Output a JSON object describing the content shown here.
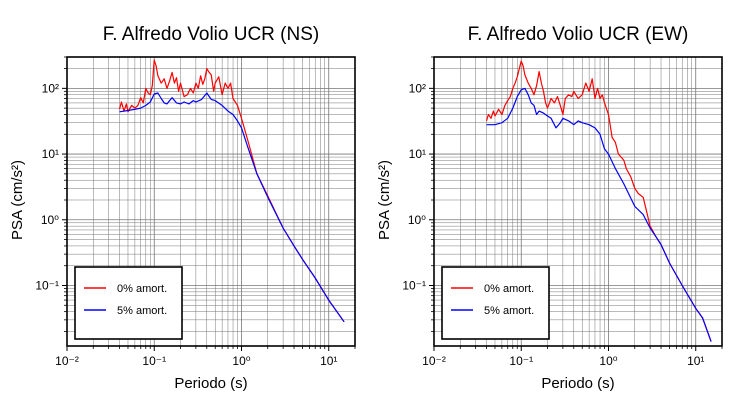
{
  "chart_data": [
    {
      "type": "line",
      "title": "F. Alfredo Volio UCR (NS)",
      "xlabel": "Periodo (s)",
      "ylabel": "PSA (cm/s²)",
      "xscale": "log",
      "yscale": "log",
      "xlim": [
        0.01,
        20
      ],
      "ylim": [
        0.012,
        300
      ],
      "grid": true,
      "legend_position": "lower-left",
      "x_tick_labels": [
        "10⁻²",
        "10⁻¹",
        "10⁰",
        "10¹"
      ],
      "y_tick_labels": [
        "10⁻¹",
        "10⁰",
        "10¹",
        "10²"
      ],
      "series": [
        {
          "name": "0% amort.",
          "color": "#ff0000",
          "x": [
            0.04,
            0.042,
            0.045,
            0.048,
            0.05,
            0.055,
            0.06,
            0.065,
            0.07,
            0.075,
            0.08,
            0.085,
            0.09,
            0.095,
            0.1,
            0.105,
            0.11,
            0.12,
            0.13,
            0.14,
            0.15,
            0.16,
            0.17,
            0.18,
            0.19,
            0.2,
            0.22,
            0.24,
            0.26,
            0.28,
            0.3,
            0.32,
            0.34,
            0.36,
            0.38,
            0.4,
            0.42,
            0.45,
            0.48,
            0.5,
            0.55,
            0.6,
            0.65,
            0.7,
            0.75,
            0.8,
            0.9,
            1.0,
            1.2,
            1.5,
            2.0,
            3.0,
            4.0,
            5.0,
            7.0,
            10.0,
            15.0
          ],
          "y": [
            48,
            62,
            45,
            58,
            44,
            55,
            50,
            55,
            72,
            60,
            100,
            85,
            80,
            110,
            270,
            220,
            155,
            120,
            140,
            100,
            130,
            175,
            120,
            145,
            90,
            120,
            75,
            80,
            100,
            85,
            120,
            100,
            155,
            115,
            140,
            200,
            180,
            160,
            90,
            120,
            150,
            80,
            120,
            100,
            120,
            70,
            55,
            35,
            15,
            5,
            2.3,
            0.75,
            0.4,
            0.25,
            0.13,
            0.06,
            0.028
          ]
        },
        {
          "name": "5% amort.",
          "color": "#0000ff",
          "x": [
            0.04,
            0.05,
            0.06,
            0.07,
            0.08,
            0.09,
            0.1,
            0.11,
            0.12,
            0.13,
            0.14,
            0.15,
            0.16,
            0.18,
            0.2,
            0.22,
            0.25,
            0.28,
            0.3,
            0.35,
            0.4,
            0.45,
            0.5,
            0.6,
            0.7,
            0.8,
            0.9,
            1.0,
            1.2,
            1.5,
            2.0,
            3.0,
            4.0,
            5.0,
            7.0,
            10.0,
            15.0
          ],
          "y": [
            44,
            46,
            48,
            50,
            55,
            62,
            82,
            85,
            70,
            60,
            58,
            65,
            72,
            60,
            58,
            62,
            58,
            65,
            62,
            68,
            85,
            68,
            65,
            55,
            45,
            40,
            32,
            25,
            12,
            5,
            2.2,
            0.75,
            0.4,
            0.25,
            0.13,
            0.06,
            0.028
          ]
        }
      ]
    },
    {
      "type": "line",
      "title": "F. Alfredo Volio UCR (EW)",
      "xlabel": "Periodo (s)",
      "ylabel": "PSA (cm/s²)",
      "xscale": "log",
      "yscale": "log",
      "xlim": [
        0.01,
        20
      ],
      "ylim": [
        0.012,
        300
      ],
      "grid": true,
      "legend_position": "lower-left",
      "x_tick_labels": [
        "10⁻²",
        "10⁻¹",
        "10⁰",
        "10¹"
      ],
      "y_tick_labels": [
        "10⁻¹",
        "10⁰",
        "10¹",
        "10²"
      ],
      "series": [
        {
          "name": "0% amort.",
          "color": "#ff0000",
          "x": [
            0.04,
            0.042,
            0.045,
            0.048,
            0.05,
            0.055,
            0.06,
            0.065,
            0.07,
            0.075,
            0.08,
            0.085,
            0.09,
            0.095,
            0.1,
            0.105,
            0.11,
            0.12,
            0.13,
            0.14,
            0.15,
            0.16,
            0.17,
            0.18,
            0.19,
            0.2,
            0.22,
            0.24,
            0.26,
            0.28,
            0.3,
            0.32,
            0.35,
            0.38,
            0.4,
            0.45,
            0.5,
            0.55,
            0.6,
            0.65,
            0.7,
            0.75,
            0.8,
            0.85,
            0.9,
            1.0,
            1.1,
            1.2,
            1.3,
            1.4,
            1.5,
            1.6,
            1.8,
            2.0,
            2.2,
            2.5,
            3.0,
            3.5,
            4.0,
            5.0,
            7.0,
            10.0,
            12.0,
            15.0
          ],
          "y": [
            32,
            40,
            35,
            45,
            38,
            48,
            40,
            55,
            65,
            75,
            100,
            120,
            150,
            200,
            260,
            220,
            160,
            120,
            100,
            80,
            110,
            180,
            120,
            90,
            60,
            50,
            70,
            60,
            75,
            55,
            40,
            70,
            80,
            75,
            90,
            70,
            80,
            120,
            90,
            140,
            70,
            100,
            70,
            80,
            60,
            40,
            18,
            15,
            10,
            9,
            8,
            6,
            4.5,
            3,
            2.5,
            2.2,
            0.8,
            0.55,
            0.42,
            0.22,
            0.1,
            0.045,
            0.032,
            0.014
          ]
        },
        {
          "name": "5% amort.",
          "color": "#0000ff",
          "x": [
            0.04,
            0.05,
            0.06,
            0.07,
            0.08,
            0.09,
            0.1,
            0.11,
            0.12,
            0.13,
            0.14,
            0.15,
            0.16,
            0.18,
            0.2,
            0.22,
            0.25,
            0.28,
            0.3,
            0.35,
            0.4,
            0.45,
            0.5,
            0.6,
            0.7,
            0.8,
            0.9,
            1.0,
            1.2,
            1.5,
            2.0,
            2.5,
            3.0,
            3.5,
            4.0,
            5.0,
            7.0,
            10.0,
            12.0,
            15.0
          ],
          "y": [
            28,
            28,
            30,
            35,
            50,
            75,
            95,
            100,
            80,
            60,
            55,
            40,
            45,
            42,
            38,
            35,
            25,
            30,
            35,
            32,
            28,
            32,
            30,
            28,
            25,
            20,
            12,
            10,
            6,
            3.5,
            1.6,
            1.2,
            0.75,
            0.55,
            0.42,
            0.22,
            0.1,
            0.045,
            0.032,
            0.014
          ]
        }
      ]
    }
  ]
}
